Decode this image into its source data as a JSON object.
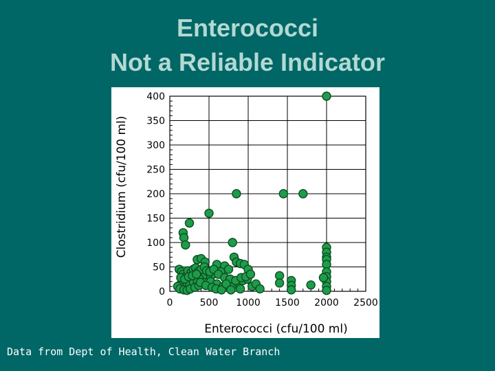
{
  "slide": {
    "title_line1": "Enterococci",
    "title_line2": "Not a Reliable Indicator",
    "footnote": "Data from Dept of Health, Clean Water Branch"
  },
  "colors": {
    "background": "#006666",
    "title": "#b3d9d3",
    "point_fill": "#1e9c4a",
    "point_stroke": "#0b4d22"
  },
  "chart_data": {
    "type": "scatter",
    "title": "",
    "xlabel": "Enterococci (cfu/100 ml)",
    "ylabel": "Clostridium (cfu/100 ml)",
    "xlim": [
      0,
      2500
    ],
    "ylim": [
      0,
      400
    ],
    "xticks": [
      0,
      500,
      1000,
      1500,
      2000,
      2500
    ],
    "yticks": [
      0,
      50,
      100,
      150,
      200,
      250,
      300,
      350,
      400
    ],
    "grid": true,
    "series": [
      {
        "points": [
          [
            2000,
            400
          ],
          [
            850,
            200
          ],
          [
            1450,
            200
          ],
          [
            1700,
            200
          ],
          [
            250,
            140
          ],
          [
            500,
            160
          ],
          [
            170,
            120
          ],
          [
            180,
            110
          ],
          [
            200,
            95
          ],
          [
            800,
            100
          ],
          [
            2000,
            90
          ],
          [
            2000,
            80
          ],
          [
            2000,
            70
          ],
          [
            2000,
            65
          ],
          [
            2000,
            55
          ],
          [
            2000,
            40
          ],
          [
            2000,
            30
          ],
          [
            2000,
            20
          ],
          [
            2000,
            10
          ],
          [
            2000,
            2
          ],
          [
            1960,
            28
          ],
          [
            350,
            65
          ],
          [
            400,
            67
          ],
          [
            450,
            60
          ],
          [
            600,
            55
          ],
          [
            700,
            52
          ],
          [
            820,
            70
          ],
          [
            850,
            60
          ],
          [
            900,
            57
          ],
          [
            950,
            55
          ],
          [
            1000,
            45
          ],
          [
            750,
            45
          ],
          [
            650,
            40
          ],
          [
            550,
            35
          ],
          [
            480,
            32
          ],
          [
            420,
            30
          ],
          [
            380,
            25
          ],
          [
            300,
            22
          ],
          [
            250,
            20
          ],
          [
            200,
            18
          ],
          [
            150,
            15
          ],
          [
            120,
            12
          ],
          [
            100,
            10
          ],
          [
            130,
            5
          ],
          [
            180,
            3
          ],
          [
            220,
            2
          ],
          [
            260,
            5
          ],
          [
            320,
            8
          ],
          [
            370,
            12
          ],
          [
            430,
            18
          ],
          [
            520,
            20
          ],
          [
            600,
            15
          ],
          [
            680,
            10
          ],
          [
            740,
            8
          ],
          [
            800,
            12
          ],
          [
            870,
            18
          ],
          [
            930,
            22
          ],
          [
            990,
            25
          ],
          [
            1050,
            10
          ],
          [
            1100,
            15
          ],
          [
            1150,
            5
          ],
          [
            1400,
            32
          ],
          [
            1400,
            17
          ],
          [
            1550,
            22
          ],
          [
            1550,
            12
          ],
          [
            1550,
            3
          ],
          [
            1800,
            13
          ],
          [
            120,
            45
          ],
          [
            150,
            40
          ],
          [
            170,
            35
          ],
          [
            200,
            30
          ],
          [
            230,
            42
          ],
          [
            270,
            38
          ],
          [
            300,
            45
          ],
          [
            330,
            48
          ],
          [
            360,
            40
          ],
          [
            400,
            45
          ],
          [
            440,
            50
          ],
          [
            470,
            42
          ],
          [
            510,
            40
          ],
          [
            560,
            45
          ],
          [
            620,
            35
          ],
          [
            700,
            28
          ],
          [
            770,
            25
          ],
          [
            840,
            22
          ],
          [
            910,
            28
          ],
          [
            970,
            30
          ],
          [
            1030,
            35
          ],
          [
            140,
            28
          ],
          [
            190,
            25
          ],
          [
            240,
            30
          ],
          [
            290,
            32
          ],
          [
            340,
            35
          ],
          [
            390,
            18
          ],
          [
            460,
            12
          ],
          [
            540,
            8
          ],
          [
            590,
            5
          ],
          [
            660,
            3
          ],
          [
            720,
            15
          ],
          [
            780,
            3
          ],
          [
            900,
            5
          ]
        ]
      }
    ]
  }
}
